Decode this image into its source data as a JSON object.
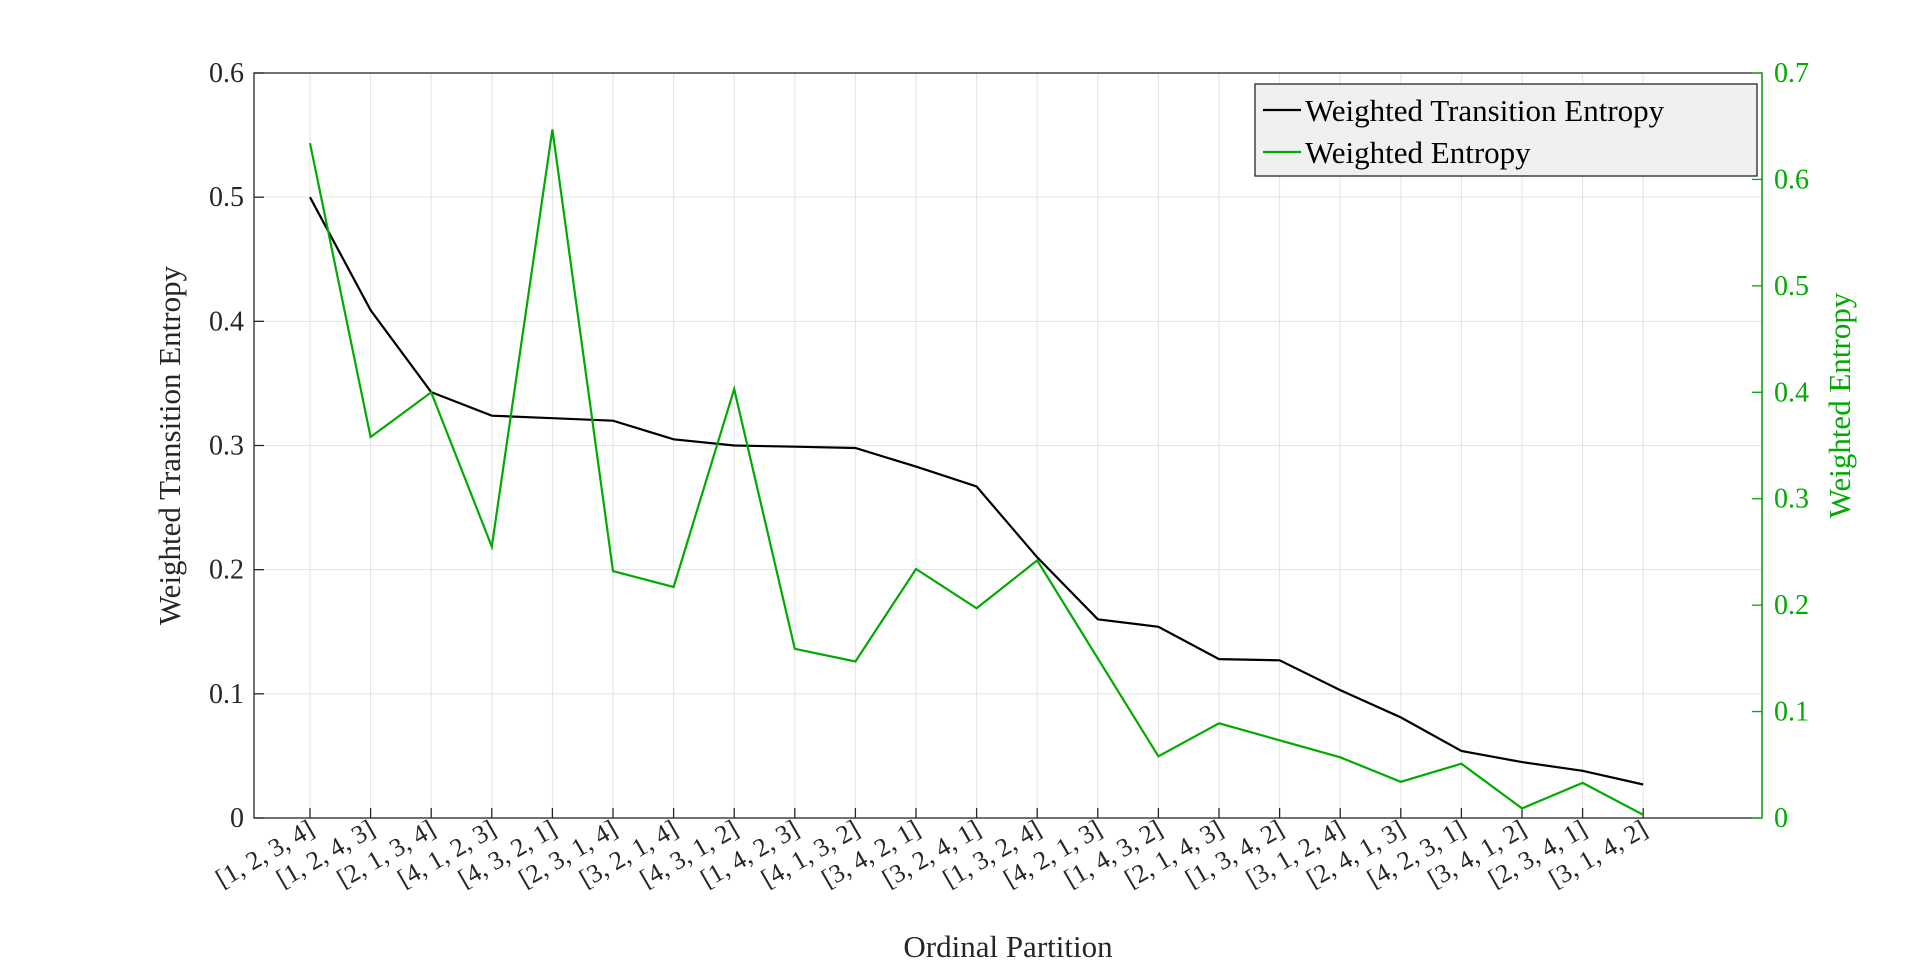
{
  "chart_data": {
    "type": "line",
    "title": "",
    "xlabel": "Ordinal Partition",
    "ylabel_left": "Weighted Transition Entropy",
    "ylabel_right": "Weighted Entropy",
    "categories": [
      "[1, 2, 3, 4]",
      "[1, 2, 4, 3]",
      "[2, 1, 3, 4]",
      "[4, 1, 2, 3]",
      "[4, 3, 2, 1]",
      "[2, 3, 1, 4]",
      "[3, 2, 1, 4]",
      "[4, 3, 1, 2]",
      "[1, 4, 2, 3]",
      "[4, 1, 3, 2]",
      "[3, 4, 2, 1]",
      "[3, 2, 4, 1]",
      "[1, 3, 2, 4]",
      "[4, 2, 1, 3]",
      "[1, 4, 3, 2]",
      "[2, 1, 4, 3]",
      "[1, 3, 4, 2]",
      "[3, 1, 2, 4]",
      "[2, 4, 1, 3]",
      "[4, 2, 3, 1]",
      "[3, 4, 1, 2]",
      "[2, 3, 4, 1]",
      "[3, 1, 4, 2]"
    ],
    "ylim_left": [
      0,
      0.6
    ],
    "ylim_right": [
      0,
      0.7
    ],
    "yticks_left": [
      "0",
      "0.1",
      "0.2",
      "0.3",
      "0.4",
      "0.5",
      "0.6"
    ],
    "yticks_right": [
      "0",
      "0.1",
      "0.2",
      "0.3",
      "0.4",
      "0.5",
      "0.6",
      "0.7"
    ],
    "grid": true,
    "legend_position": "top-right",
    "series": [
      {
        "name": "Weighted Transition Entropy",
        "axis": "left",
        "color": "#000000",
        "values": [
          0.5,
          0.409,
          0.343,
          0.324,
          0.322,
          0.32,
          0.305,
          0.3,
          0.299,
          0.298,
          0.283,
          0.267,
          0.21,
          0.16,
          0.154,
          0.128,
          0.127,
          0.103,
          0.081,
          0.054,
          0.045,
          0.038,
          0.027
        ]
      },
      {
        "name": "Weighted Entropy",
        "axis": "right",
        "color": "#00aa00",
        "values": [
          0.634,
          0.358,
          0.4,
          0.255,
          0.647,
          0.232,
          0.217,
          0.403,
          0.159,
          0.147,
          0.234,
          0.197,
          0.242,
          0.15,
          0.058,
          0.089,
          0.073,
          0.057,
          0.034,
          0.051,
          0.009,
          0.033,
          0.003
        ]
      }
    ]
  }
}
